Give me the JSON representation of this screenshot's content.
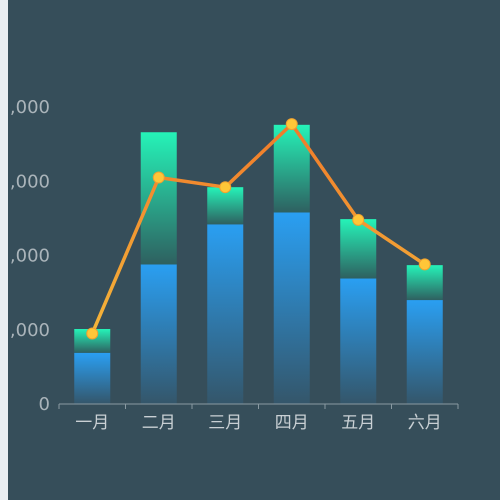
{
  "chart_data": {
    "type": "bar",
    "stacked": true,
    "categories": [
      "一月",
      "二月",
      "三月",
      "四月",
      "五月",
      "六月"
    ],
    "series": [
      {
        "type": "bar",
        "values": [
          690,
          1880,
          2420,
          2580,
          1690,
          1400
        ]
      },
      {
        "type": "bar",
        "values": [
          320,
          1780,
          500,
          1180,
          800,
          470
        ]
      },
      {
        "type": "line",
        "values": [
          950,
          3050,
          2920,
          3770,
          2480,
          1880
        ]
      }
    ],
    "y_ticks": [
      "0",
      ",000",
      ",000",
      ",000",
      ",000"
    ],
    "ylim": [
      0,
      4000
    ],
    "grid": false,
    "colors": {
      "panel_bg": "#364e5a",
      "bar_bottom_top": "#2a9ff2",
      "bar_bottom_base": "#34566a",
      "bar_top_top": "#25f3b8",
      "bar_top_base": "#2e6060",
      "line": "#f07a2a",
      "line_light": "#f4b53a",
      "point": "#ffc638",
      "axis": "#8a9aa2",
      "tick_label": "#aab4ba"
    }
  }
}
